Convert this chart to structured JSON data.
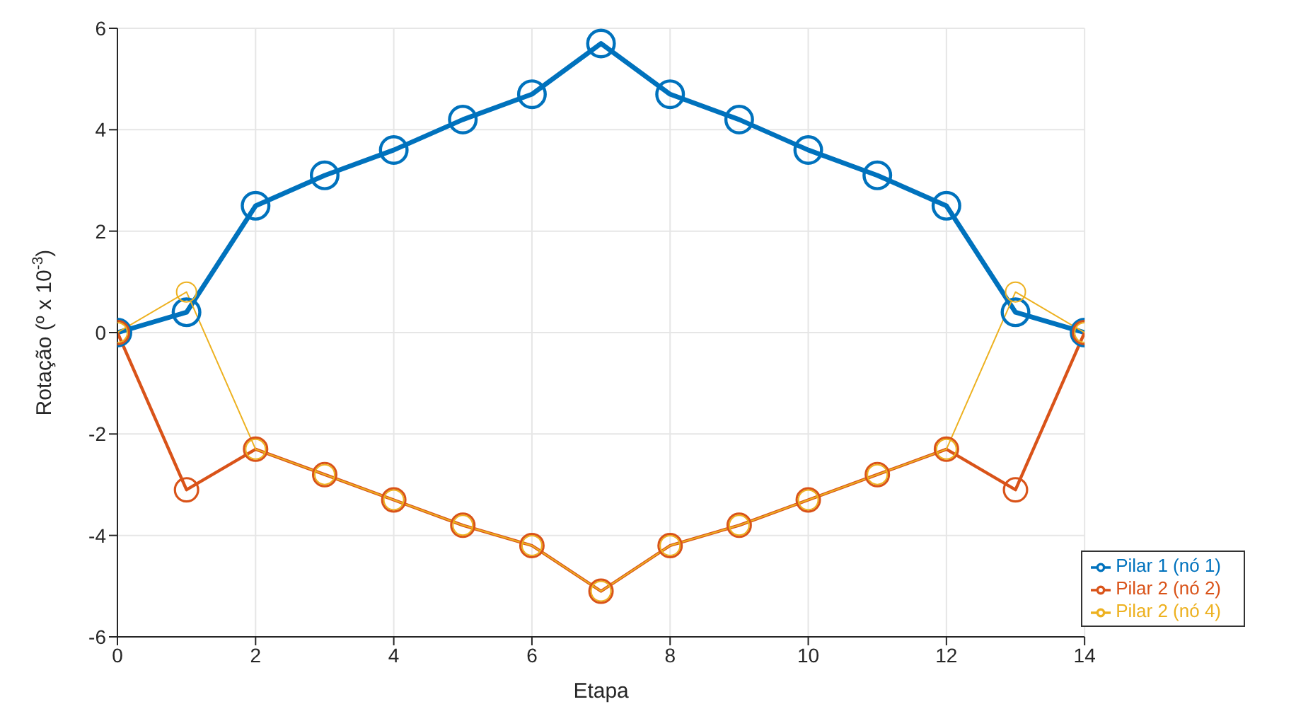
{
  "chart_data": {
    "type": "line",
    "xlabel": "Etapa",
    "ylabel": "Rotação (º x 10$^{-3}$)",
    "x": [
      0,
      1,
      2,
      3,
      4,
      5,
      6,
      7,
      8,
      9,
      10,
      11,
      12,
      13,
      14
    ],
    "series": [
      {
        "name": "Pilar 1 (nó 1)",
        "color": "#0072bd",
        "values": [
          0,
          0.4,
          2.5,
          3.1,
          3.6,
          4.2,
          4.7,
          5.7,
          4.7,
          4.2,
          3.6,
          3.1,
          2.5,
          0.4,
          0
        ]
      },
      {
        "name": "Pilar 2 (nó 2)",
        "color": "#d95319",
        "values": [
          0,
          -3.1,
          -2.3,
          -2.8,
          -3.3,
          -3.8,
          -4.2,
          -5.1,
          -4.2,
          -3.8,
          -3.3,
          -2.8,
          -2.3,
          -3.1,
          0
        ]
      },
      {
        "name": "Pilar 2 (nó 4)",
        "color": "#edb120",
        "values": [
          0,
          0.8,
          -2.3,
          -2.8,
          -3.3,
          -3.8,
          -4.2,
          -5.1,
          -4.2,
          -3.8,
          -3.3,
          -2.8,
          -2.3,
          0.8,
          0
        ]
      }
    ],
    "xlim": [
      0,
      14
    ],
    "xticks": [
      0,
      2,
      4,
      6,
      8,
      10,
      12,
      14
    ],
    "ylim": [
      -6,
      6
    ],
    "yticks": [
      -6,
      -4,
      -2,
      0,
      2,
      4,
      6
    ],
    "grid": true,
    "legend": "bottom right",
    "marker": "circle",
    "line_style": "solid"
  }
}
